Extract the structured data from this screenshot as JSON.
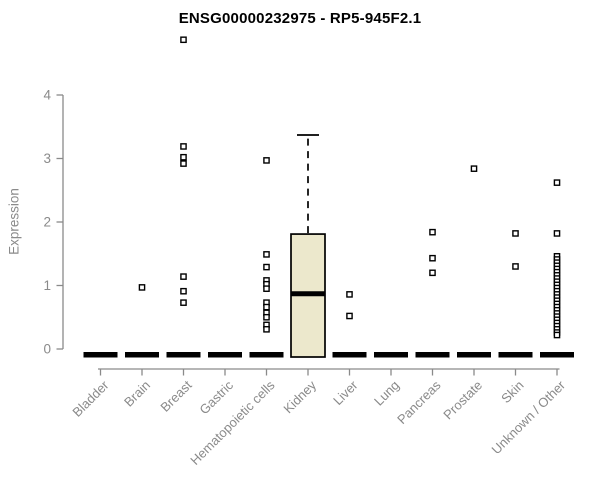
{
  "chart_data": {
    "type": "boxplot",
    "title": "ENSG00000232975 - RP5-945F2.1",
    "ylabel": "Expression",
    "xlabel": "",
    "ylim": [
      0,
      4
    ],
    "yticks": [
      "0",
      "1",
      "2",
      "3",
      "4"
    ],
    "grid": false,
    "legend": false,
    "categories": [
      "Bladder",
      "Brain",
      "Breast",
      "Gastric",
      "Hematopoietic cells",
      "Kidney",
      "Liver",
      "Lung",
      "Pancreas",
      "Prostate",
      "Skin",
      "Unknown / Other"
    ],
    "boxes": [
      {
        "category": "Bladder",
        "q1": 0,
        "median": 0,
        "q3": 0,
        "whisker_low": 0,
        "whisker_high": 0,
        "outliers": []
      },
      {
        "category": "Brain",
        "q1": 0,
        "median": 0,
        "q3": 0,
        "whisker_low": 0,
        "whisker_high": 0,
        "outliers": [
          0.97
        ]
      },
      {
        "category": "Breast",
        "q1": 0,
        "median": 0,
        "q3": 0,
        "whisker_low": 0,
        "whisker_high": 0,
        "outliers": [
          4.87,
          3.19,
          3.02,
          2.92,
          1.14,
          0.91,
          0.73
        ]
      },
      {
        "category": "Gastric",
        "q1": 0,
        "median": 0,
        "q3": 0,
        "whisker_low": 0,
        "whisker_high": 0,
        "outliers": []
      },
      {
        "category": "Hematopoietic cells",
        "q1": 0,
        "median": 0,
        "q3": 0,
        "whisker_low": 0,
        "whisker_high": 0,
        "outliers": [
          2.97,
          1.49,
          1.29,
          1.08,
          1.02,
          0.95,
          0.73,
          0.66,
          0.57,
          0.5,
          0.38,
          0.31
        ]
      },
      {
        "category": "Kidney",
        "q1": 0,
        "median": 0.87,
        "q3": 1.81,
        "whisker_low": 0,
        "whisker_high": 3.37,
        "outliers": []
      },
      {
        "category": "Liver",
        "q1": 0,
        "median": 0,
        "q3": 0,
        "whisker_low": 0,
        "whisker_high": 0,
        "outliers": [
          0.86,
          0.52
        ]
      },
      {
        "category": "Lung",
        "q1": 0,
        "median": 0,
        "q3": 0,
        "whisker_low": 0,
        "whisker_high": 0,
        "outliers": []
      },
      {
        "category": "Pancreas",
        "q1": 0,
        "median": 0,
        "q3": 0,
        "whisker_low": 0,
        "whisker_high": 0,
        "outliers": [
          1.84,
          1.43,
          1.2
        ]
      },
      {
        "category": "Prostate",
        "q1": 0,
        "median": 0,
        "q3": 0,
        "whisker_low": 0,
        "whisker_high": 0,
        "outliers": [
          2.84
        ]
      },
      {
        "category": "Skin",
        "q1": 0,
        "median": 0,
        "q3": 0,
        "whisker_low": 0,
        "whisker_high": 0,
        "outliers": [
          1.82,
          1.3
        ]
      },
      {
        "category": "Unknown / Other",
        "q1": 0,
        "median": 0,
        "q3": 0,
        "whisker_low": 0,
        "whisker_high": 0,
        "outliers": [
          2.62,
          1.82,
          1.46,
          1.41,
          1.36,
          1.31,
          1.26,
          1.21,
          1.16,
          1.11,
          1.06,
          1.01,
          0.96,
          0.91,
          0.86,
          0.81,
          0.76,
          0.71,
          0.66,
          0.61,
          0.56,
          0.51,
          0.46,
          0.41,
          0.36,
          0.31,
          0.26,
          0.22
        ]
      }
    ],
    "colors": {
      "box_fill": "#ece8cc",
      "box_stroke": "#000000",
      "median": "#000000",
      "outlier_stroke": "#000000",
      "outlier_fill": "#ffffff",
      "axis": "#8a8a8a",
      "tick_text": "#8a8a8a",
      "title_text": "#000000"
    }
  }
}
